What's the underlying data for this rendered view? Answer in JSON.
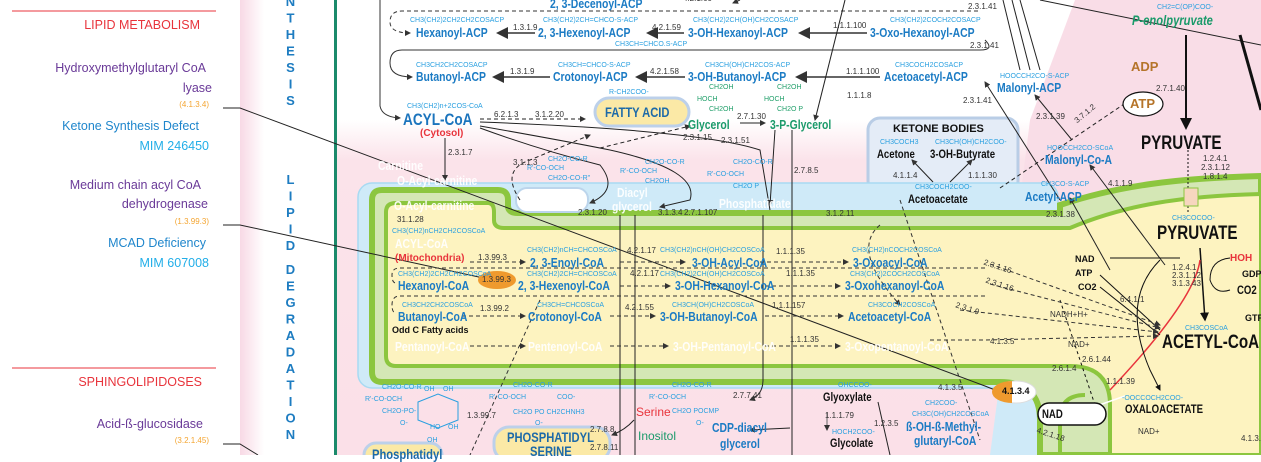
{
  "left_panel": {
    "lipid_metabolism": {
      "heading": "LIPID METABOLISM",
      "entries": [
        {
          "enzyme_line1": "Hydroxymethylglutaryl CoA",
          "enzyme_line2": "lyase",
          "ec": "(4.1.3.4)",
          "disease": "Ketone Synthesis Defect",
          "mim": "MIM 246450"
        },
        {
          "enzyme_line1": "Medium chain acyl CoA",
          "enzyme_line2": "dehydrogenase",
          "ec": "(1.3.99.3)",
          "disease": "MCAD Deficiency",
          "mim": "MIM 607008"
        }
      ]
    },
    "sphingolipidoses": {
      "heading": "SPHINGOLIPIDOSES",
      "entries": [
        {
          "enzyme_line1": "Acid-ß-glucosidase",
          "ec": "(3.2.1.45)"
        }
      ]
    }
  },
  "vertical_labels": {
    "synthesis_tail": "NTHESIS",
    "lipid": "LIPID",
    "degradation": "DEGRADATION"
  },
  "colors": {
    "heading": "#e8343c",
    "enzyme": "#6a3a98",
    "ec": "#f4a531",
    "disease": "#1f86cc",
    "compound": "#1b7bc4",
    "divider_green": "#1b8a6b",
    "membrane_green": "#8cc63f",
    "matrix_yellow": "#fdf3c0",
    "cytosol_pink": "#fbe3ea"
  },
  "diagram": {
    "decenoyl_acp": "2, 3-Decenoyl-ACP",
    "ec_4_2_1_60": "4.2.1.60",
    "f_hexanoyl_acp": "CH3(CH2)2CH2CH2COSACP",
    "hexanoyl_acp": "Hexanoyl-ACP",
    "ec_1_3_1_9_a": "1.3.1.9",
    "f_hexenoyl_acp": "CH3(CH2)2CH=CHCO-S-ACP",
    "hexenoyl_acp": "2, 3-Hexenoyl-ACP",
    "ec_4_2_1_59": "4.2.1.59",
    "f_ohhexanoyl_acp": "CH3(CH2)2CH(OH)CH2COSACP",
    "ohhexanoyl_acp": "3-OH-Hexanoyl-ACP",
    "f_crot_small": "CH3CH=CHCO.S-ACP",
    "ec_1_1_1_100_a": "1.1.1.100",
    "f_oxohexanoyl_acp": "CH3(CH2)2COCH2COSACP",
    "oxohexanoyl_acp": "3-Oxo-Hexanoyl-ACP",
    "ec_2_3_1_41_a": "2.3.1.41",
    "ec_2_3_1_41_b": "2.3.1.41",
    "ec_2_3_1_41_c": "2.3.1.41",
    "f_butanoyl_acp": "CH3CH2CH2COSACP",
    "butanoyl_acp": "Butanoyl-ACP",
    "ec_1_3_1_9_b": "1.3.1.9",
    "f_crotonoyl_acp": "CH3CH=CHCO-S-ACP",
    "crotonoyl_acp": "Crotonoyl-ACP",
    "ec_4_2_1_58": "4.2.1.58",
    "f_ohbutanoyl_acp": "CH3CH(OH)CH2COS-ACP",
    "ohbutanoyl_acp": "3-OH-Butanoyl-ACP",
    "ec_1_1_1_100_b": "1.1.1.100",
    "f_acetoacetyl_acp": "CH3COCH2COSACP",
    "acetoacetyl_acp": "Acetoacetyl-ACP",
    "f_malonyl_acp": "HOOCCH2CO-S-ACP",
    "malonyl_acp": "Malonyl-ACP",
    "f_fatty_acid": "R-CH2COO-",
    "fatty_acid": "FATTY ACID",
    "f_acyl_coa": "CH3(CH2)n+2COS-CoA",
    "acyl_coa": "ACYL-CoA",
    "cytosol": "(Cytosol)",
    "ec_6_2_1_3": "6.2.1.3",
    "ec_3_1_2_20": "3.1.2.20",
    "f_glycerol_1": "CH2OH",
    "f_glycerol_2": "HOCH",
    "f_glycerol_3": "CH2OH",
    "glycerol": "Glycerol",
    "ec_2_7_1_30": "2.7.1.30",
    "f_pglycerol_1": "CH2OH",
    "f_pglycerol_2": "HOCH",
    "f_pglycerol_3": "CH2O P",
    "p_glycerol": "3-P-Glycerol",
    "ec_1_1_1_8": "1.1.1.8",
    "ec_2_3_1_15": "2.3.1.15",
    "ec_2_3_1_51": "2.3.1.51",
    "ec_2_3_1_7": "2.3.1.7",
    "carnitine": "Carnitine",
    "o_acyl_carnitine": "O-Acyl-carnitine",
    "o_acyl_carnitine_mito": "O-Acyl-carnitine",
    "ec_31_1_28": "31.1.28",
    "ec_3_1_1_3": "3.1.1.3",
    "f_tg_1": "CH2O-CO-R",
    "f_tg_2": "R'-CO-OCH",
    "f_tg_3": "CH2O-CO-R\"",
    "f_dg_1": "CH2O-CO-R",
    "f_dg_2": "R'-CO-OCH",
    "f_dg_3": "CH2OH",
    "f_pa_1": "CH2O-CO-R",
    "f_pa_2": "R'-CO-OCH",
    "f_pa_3": "CH2O P",
    "ec_2_3_1_20": "2.3.1.20",
    "diacyl": "Diacyl",
    "glycerol_dg": "glycerol",
    "ec_3_1_3_4": "3.1.3.4",
    "ec_2_7_1_107": "2.7.1.107",
    "phosphatidate": "Phosphatidate",
    "ec_2_7_8_5": "2.7.8.5",
    "ec_3_1_2_11": "3.1.2.11",
    "ketone_bodies": "KETONE BODIES",
    "f_acetone": "CH3COCH3",
    "acetone": "Acetone",
    "f_ohbutyrate": "CH3CH(OH)CH2COO-",
    "ohbutyrate": "3-OH-Butyrate",
    "ec_4_1_1_4": "4.1.1.4",
    "ec_1_1_1_30": "1.1.1.30",
    "f_acetoacetate": "CH3COCH2COO-",
    "acetoacetate": "Acetoacetate",
    "ec_2_3_1_39": "2.3.1.39",
    "ec_3_7_1_2": "3.7.1.2",
    "f_malonyl_coa": "HOOCCH2CO-SCoA",
    "malonyl_coa": "Malonyl-Co-A",
    "ec_4_1_1_9": "4.1.1.9",
    "f_acetyl_acp": "CH3CO-S-ACP",
    "acetyl_acp": "Acetyl-ACP",
    "ec_2_3_1_38": "2.3.1.38",
    "f_pep": "CH2=C(OP)COO-",
    "pep": "P-enolpyruvate",
    "adp": "ADP",
    "ec_2_7_1_40": "2.7.1.40",
    "atp_circle": "ATP",
    "pyruvate_cyt": "PYRUVATE",
    "ec_pdh_1": "1.2.4.1",
    "ec_pdh_2": "2.3.1.12",
    "ec_pdh_3": "1.8.1.4",
    "f_pyruvate": "CH3COCOO-",
    "pyruvate_mito": "PYRUVATE",
    "hoh": "HOH",
    "nad_in": "NAD",
    "atp_in": "ATP",
    "co2_in": "CO2",
    "gdp": "GDP",
    "co2_out": "CO2",
    "ec_pdh2_1": "1.2.4.1",
    "ec_pdh2_2": "2.3.1.12",
    "ec_pdh2_3": "3.1.3.43",
    "ec_6_4_1_1": "6.4.1.1",
    "nadh": "NADH+H+",
    "nad_plus": "NAD+",
    "ec_4_1_3_5_a": "4.1.3.5",
    "f_acetyl_coa": "CH3COSCoA",
    "acetyl_coa": "ACETYL-CoA",
    "gtp": "GTP",
    "ec_2_6_1_44": "2.6.1.44",
    "ec_2_6_1_4": "2.6.1.4",
    "ec_1_1_1_39": "1.1.1.39",
    "badge_4_1_3_4": "4.1.3.4",
    "nad_box": "NAD",
    "f_oxaloacetate": "-OOCCOCH2COO-",
    "oxaloacetate": "OXALOACETATE",
    "nad_plus_2": "NAD+",
    "ec_4_1_3_x": "4.1.3.",
    "ec_4_1_3_5_b": "4.1.3.5",
    "f_hmg_1": "CH2COO-",
    "f_hmg_2": "CH3C(OH)CH2COSCoA",
    "hmg_1": "ß-OH-ß-Methyl-",
    "hmg_2": "glutaryl-CoA",
    "ec_4_2_1_18": "4.2.1.18",
    "acyl_coa_mito": "ACYL-CoA",
    "mitochondria": "(Mitochondria)",
    "f_acyl_coa_mito": "CH3(CH2)nCH2CH2COSCoA",
    "ec_1_3_99_3_a": "1.3.99.3",
    "f_enoyl": "CH3(CH2)nCH=CHCOSCoA",
    "enoyl_coa": "2, 3-Enoyl-CoA",
    "ec_4_2_1_17_a": "4.2.1.17",
    "f_ohacyl": "CH3(CH2)nCH(OH)CH2COSCoA",
    "ohacyl_coa": "3-OH-Acyl-CoA",
    "ec_1_1_1_35_a": "1.1.1.35",
    "f_oxoacyl": "CH3(CH2)nCOCH2COSCoA",
    "oxoacyl_coa": "3-Oxoacyl-CoA",
    "ec_2_3_1_16_a": "2.3.1.16",
    "f_hexanoyl_coa": "CH3(CH2)2CH2CH2COSCoA",
    "hexanoyl_coa": "Hexanoyl-CoA",
    "badge_1_3_99_3": "1.3.99.3",
    "f_hexenoyl_coa": "CH3(CH2)2CH=CHCOSCoA",
    "hexenoyl_coa": "2, 3-Hexenoyl-CoA",
    "ec_4_2_1_17_b": "4.2.1.17",
    "f_ohhexanoyl_coa": "CH3(CH2)2CH(OH)CH2COSCoA",
    "ohhexanoyl_coa": "3-OH-Hexanoyl-CoA",
    "ec_1_1_1_35_b": "1.1.1.35",
    "f_oxohexanoyl_coa": "CH3(CH2)2COCH2COSCoA",
    "oxohexanoyl_coa": "3-Oxohexanoyl-CoA",
    "ec_2_3_1_16_b": "2.3.1.16",
    "f_butanoyl_coa": "CH3CH2CH2COSCoA",
    "butanoyl_coa": "Butanoyl-CoA",
    "ec_1_3_99_2": "1.3.99.2",
    "f_crotonoyl_coa": "CH3CH=CHCOSCoA",
    "crotonoyl_coa": "Crotonoyl-CoA",
    "ec_4_2_1_55": "4.2.1.55",
    "f_ohbutanoyl_coa": "CH3CH(OH)CH2COSCoA",
    "ohbutanoyl_coa": "3-OH-Butanoyl-CoA",
    "ec_1_1_1_157": "1.1.1.157",
    "f_acetoacetyl_coa": "CH3COCH2COSCoA",
    "acetoacetyl_coa": "Acetoacetyl-CoA",
    "ec_2_3_1_9": "2.3.1.9",
    "odd_c": "Odd C Fatty acids",
    "pentanoyl_coa": "Pentanoyl-CoA",
    "pentenoyl_coa": "Pentenoyl-CoA",
    "ohpentanoyl_coa": "3-OH-Pentanoyl-CoA",
    "ec_1_1_1_35_c": "1.1.1.35",
    "oxopentanoyl_coa": "3-Oxopentanoyl-CoA",
    "f_pi_1": "CH2O-CO-R",
    "f_pi_2": "R'-CO-OCH",
    "f_pi_3": "CH2O-PO-",
    "f_pi_4": "O-",
    "f_pi_oh1": "OH",
    "f_pi_oh2": "OH",
    "f_pi_oh3": "HO",
    "f_pi_oh4": "OH",
    "f_pi_oh5": "OH",
    "ec_1_3_99_7": "1.3.99.7",
    "f_ps_1": "CH2O-CO-R",
    "f_ps_2": "R'-CO-OCH",
    "f_ps_3": "CH2O PO CH2CHNH3",
    "f_ps_4": "COO-",
    "f_ps_5": "O-",
    "phosphatidyl_serine_1": "PHOSPHATIDYL",
    "phosphatidyl_serine_2": "SERINE",
    "phosphatidyl_other": "Phosphatidyl",
    "ec_2_7_8_8": "2.7.8.8",
    "ec_2_7_8_11": "2.7.8.11",
    "serine": "Serine",
    "inositol": "Inositol",
    "f_cdp_1": "CH2O-CO-R",
    "f_cdp_2": "R'-CO-OCH",
    "f_cdp_3": "CH2O POCMP",
    "f_cdp_4": "O-",
    "cdp_1": "CDP-diacyl",
    "cdp_2": "glycerol",
    "ec_2_7_7_41": "2.7.7.41",
    "f_glyoxylate": "OHCCOO-",
    "glyoxylate": "Glyoxylate",
    "ec_1_1_1_79": "1.1.1.79",
    "ec_1_2_3_5": "1.2.3.5",
    "f_glycolate": "HOCH2COO-",
    "glycolate": "Glycolate"
  }
}
